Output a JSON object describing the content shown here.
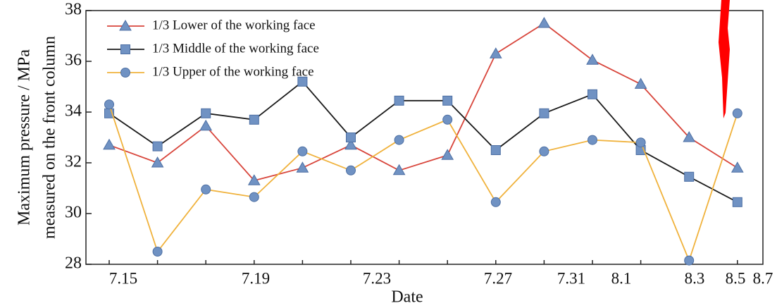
{
  "chart_data": {
    "type": "line",
    "y_label": [
      "Maximum pressure / MPa",
      "measured on the front column"
    ],
    "x_label": "Date",
    "categories": [
      null,
      null,
      null,
      null,
      null,
      null,
      null,
      null,
      null,
      null,
      null,
      null,
      null,
      null
    ],
    "xtick_labels": [
      "7.15",
      "7.19",
      "7.23",
      "7.27",
      "7.31",
      "8.1",
      "8.3",
      "8.5",
      "8.7"
    ],
    "series": [
      {
        "name": "1/3 Lower of the working face",
        "color": "#d8453b",
        "marker": "triangle",
        "values": [
          32.7,
          32.0,
          33.45,
          31.3,
          31.8,
          32.7,
          31.7,
          32.3,
          36.3,
          37.5,
          36.05,
          35.1,
          33.0,
          31.8
        ]
      },
      {
        "name": "1/3 Middle of the working face",
        "color": "#1a1a1a",
        "marker": "square",
        "values": [
          33.95,
          32.65,
          33.95,
          33.7,
          35.2,
          33.0,
          34.45,
          34.45,
          32.5,
          33.95,
          34.7,
          32.5,
          31.45,
          30.45
        ]
      },
      {
        "name": "1/3 Upper of the working face",
        "color": "#f0b23c",
        "marker": "circle",
        "values": [
          34.3,
          28.5,
          30.95,
          30.65,
          32.45,
          31.7,
          32.9,
          33.7,
          30.45,
          32.45,
          32.9,
          32.8,
          28.15,
          33.95
        ]
      }
    ],
    "ylim": [
      28,
      38
    ],
    "yticks": [
      28,
      30,
      32,
      34,
      36,
      38
    ],
    "grid": false,
    "legend": "upper left"
  }
}
